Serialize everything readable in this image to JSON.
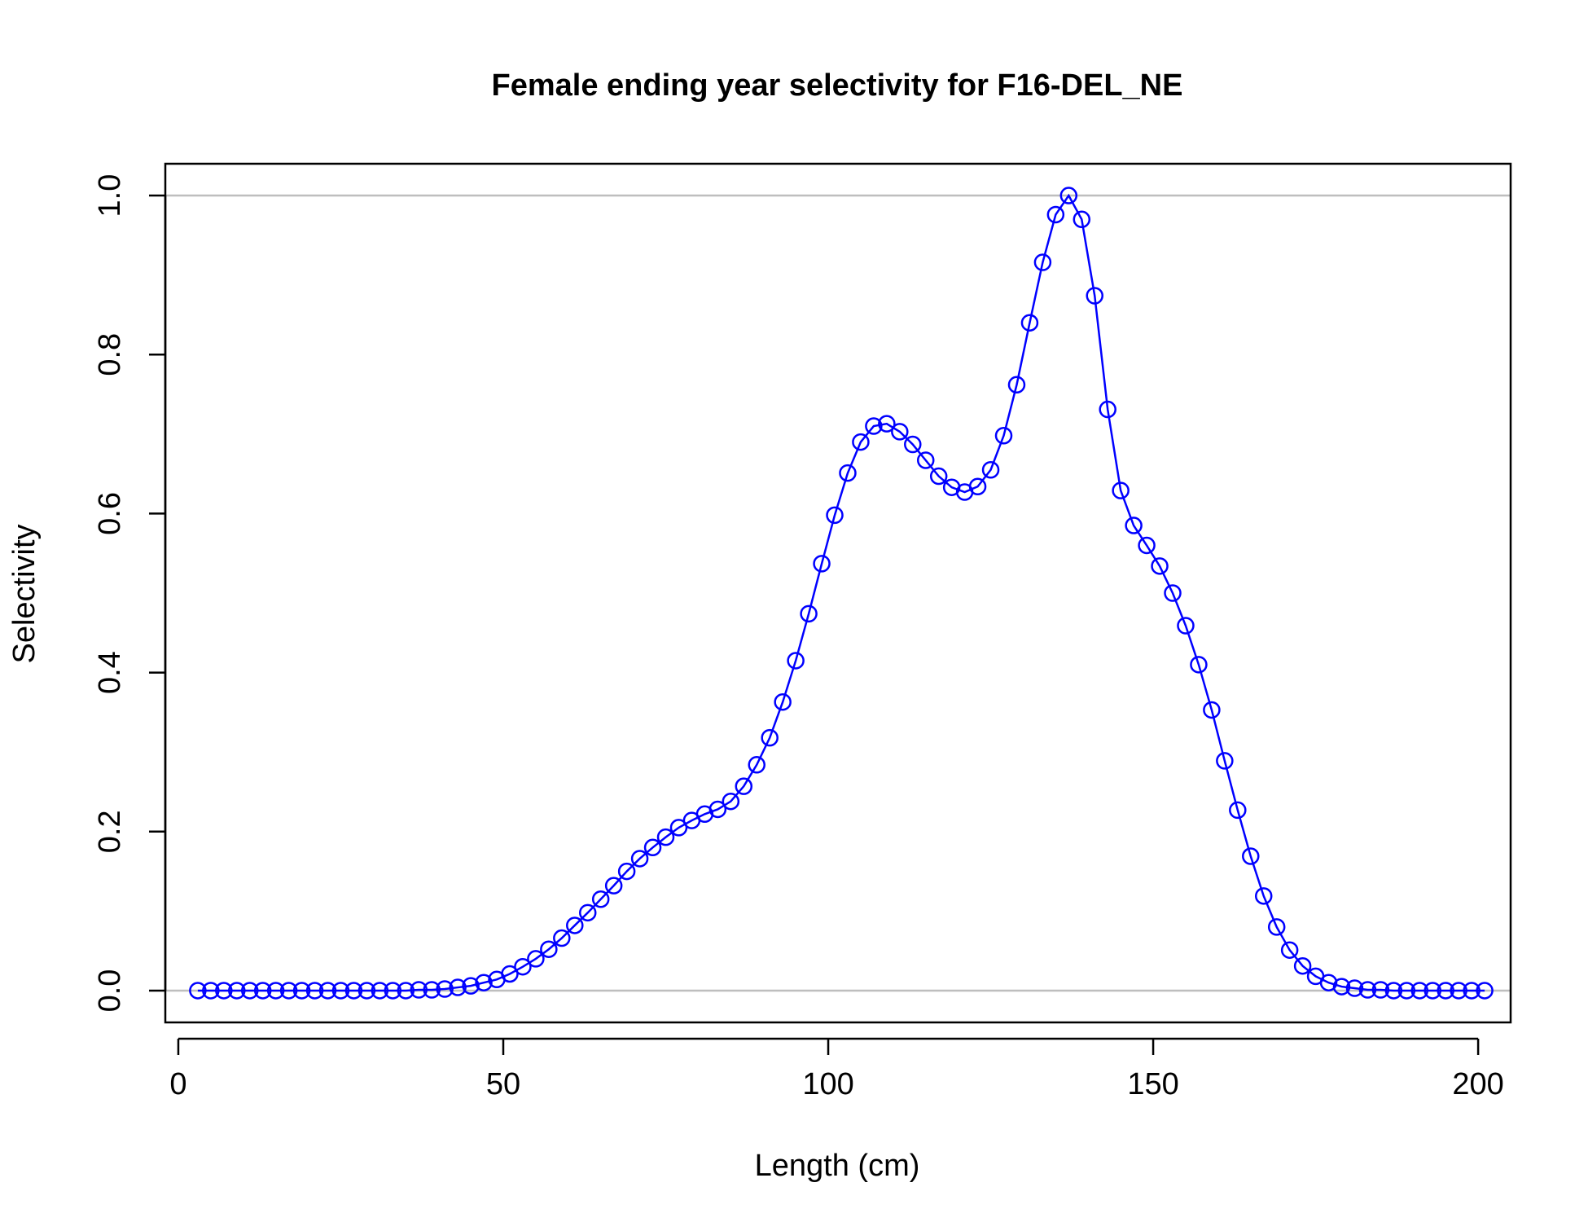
{
  "chart_data": {
    "type": "line",
    "title": "Female ending year selectivity for F16-DEL_NE",
    "xlabel": "Length (cm)",
    "ylabel": "Selectivity",
    "xlim": [
      -2,
      205
    ],
    "ylim": [
      -0.04,
      1.04
    ],
    "x_ticks": [
      0,
      50,
      100,
      150,
      200
    ],
    "x_tick_labels": [
      "0",
      "50",
      "100",
      "150",
      "200"
    ],
    "y_ticks": [
      0,
      0.2,
      0.4,
      0.6,
      0.8,
      1
    ],
    "y_tick_labels": [
      "0.0",
      "0.2",
      "0.4",
      "0.6",
      "0.8",
      "1.0"
    ],
    "reference_lines_y": [
      0,
      1
    ],
    "grid": false,
    "legend": "none",
    "series_color": "#0000ff",
    "reference_line_color": "#bebebe",
    "markers": "open-circle",
    "series": [
      {
        "x": [
          3,
          5,
          7,
          9,
          11,
          13,
          15,
          17,
          19,
          21,
          23,
          25,
          27,
          29,
          31,
          33,
          35,
          37,
          39,
          41,
          43,
          45,
          47,
          49,
          51,
          53,
          55,
          57,
          59,
          61,
          63,
          65,
          67,
          69,
          71,
          73,
          75,
          77,
          79,
          81,
          83,
          85,
          87,
          89,
          91,
          93,
          95,
          97,
          99,
          101,
          103,
          105,
          107,
          109,
          111,
          113,
          115,
          117,
          119,
          121,
          123,
          125,
          127,
          129,
          131,
          133,
          135,
          137,
          139,
          141,
          143,
          145,
          147,
          149,
          151,
          153,
          155,
          157,
          159,
          161,
          163,
          165,
          167,
          169,
          171,
          173,
          175,
          177,
          179,
          181,
          183,
          185,
          187,
          189,
          191,
          193,
          195,
          197,
          199,
          201
        ],
        "y": [
          0,
          0,
          0,
          0,
          0,
          0,
          0,
          0,
          0,
          0,
          0,
          0,
          0,
          0,
          0,
          0,
          0,
          0.001,
          0.001,
          0.002,
          0.004,
          0.006,
          0.01,
          0.014,
          0.021,
          0.03,
          0.04,
          0.052,
          0.066,
          0.082,
          0.098,
          0.115,
          0.132,
          0.15,
          0.166,
          0.18,
          0.193,
          0.205,
          0.214,
          0.222,
          0.228,
          0.238,
          0.257,
          0.284,
          0.318,
          0.363,
          0.415,
          0.474,
          0.537,
          0.598,
          0.651,
          0.69,
          0.71,
          0.713,
          0.703,
          0.687,
          0.667,
          0.647,
          0.633,
          0.627,
          0.634,
          0.655,
          0.698,
          0.762,
          0.84,
          0.916,
          0.976,
          1.0,
          0.97,
          0.874,
          0.731,
          0.629,
          0.585,
          0.56,
          0.534,
          0.5,
          0.459,
          0.41,
          0.353,
          0.289,
          0.227,
          0.169,
          0.119,
          0.08,
          0.051,
          0.031,
          0.018,
          0.01,
          0.005,
          0.003,
          0.001,
          0.001,
          0,
          0,
          0,
          0,
          0,
          0,
          0,
          0
        ]
      }
    ]
  }
}
